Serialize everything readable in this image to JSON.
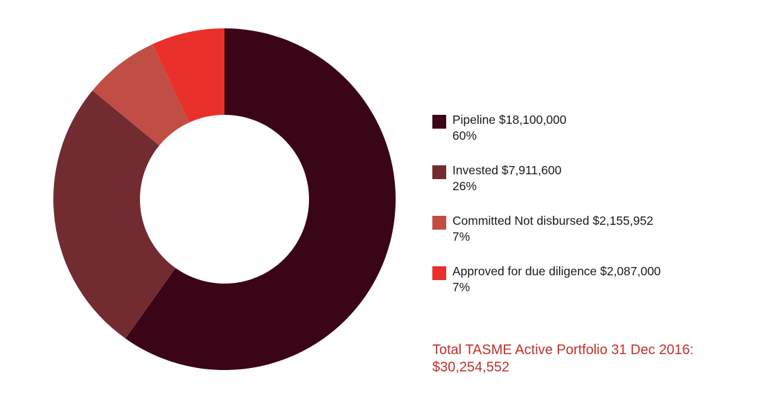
{
  "chart_data": {
    "type": "pie",
    "style": "donut",
    "slices": [
      {
        "label": "Pipeline",
        "amount": "$18,100,000",
        "percent_label": "60%",
        "value": 18100000,
        "color": "#3a0517"
      },
      {
        "label": "Invested",
        "amount": "$7,911,600",
        "percent_label": "26%",
        "value": 7911600,
        "color": "#722b31"
      },
      {
        "label": "Committed Not disbursed",
        "amount": "$2,155,952",
        "percent_label": "7%",
        "value": 2155952,
        "color": "#c04e45"
      },
      {
        "label": "Approved for due diligence",
        "amount": "$2,087,000",
        "percent_label": "7%",
        "value": 2087000,
        "color": "#e9302a"
      }
    ],
    "legend_position": "right",
    "total": {
      "line1": "Total TASME Active Portfolio 31 Dec 2016:",
      "line2": "$30,254,552",
      "color": "#c0302b"
    }
  }
}
